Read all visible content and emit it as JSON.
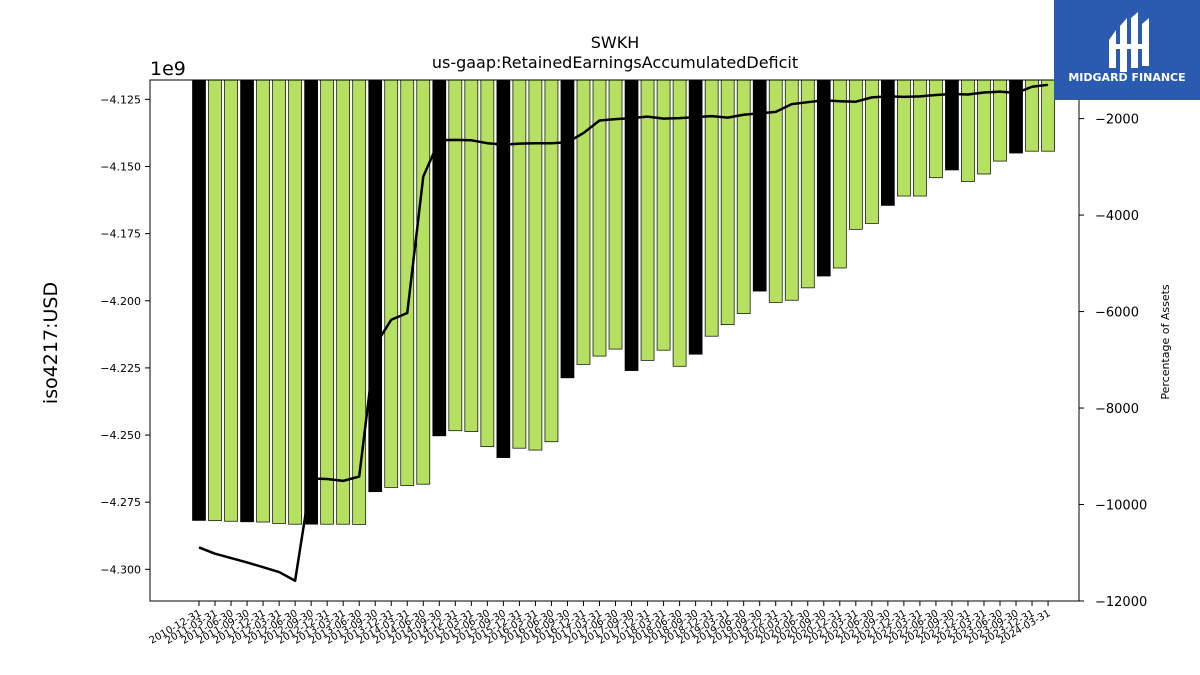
{
  "chart_data": {
    "type": "bar",
    "title": "SWKH",
    "subtitle": "us-gaap:RetainedEarningsAccumulatedDeficit",
    "ylabel": "iso4217:USD",
    "y_multiplier_label": "1e9",
    "y2label": "Percentage of Assets",
    "ylim": [
      -4.3118,
      -4.1178
    ],
    "y2lim": [
      -12000,
      -1200
    ],
    "yticks": [
      "−4.125",
      "−4.150",
      "−4.175",
      "−4.200",
      "−4.225",
      "−4.250",
      "−4.275",
      "−4.300"
    ],
    "y2ticks": [
      "−2000",
      "−4000",
      "−6000",
      "−8000",
      "−10000",
      "−12000"
    ],
    "categories": [
      "2010-12-31",
      "2011-03-31",
      "2011-06-30",
      "2011-09-30",
      "2011-12-31",
      "2012-03-31",
      "2012-06-30",
      "2012-09-30",
      "2012-12-31",
      "2013-03-31",
      "2013-06-30",
      "2013-09-30",
      "2013-12-31",
      "2014-03-31",
      "2014-06-30",
      "2014-09-30",
      "2014-12-31",
      "2015-03-31",
      "2015-06-30",
      "2015-09-30",
      "2015-12-31",
      "2016-03-31",
      "2016-06-30",
      "2016-09-30",
      "2016-12-31",
      "2017-03-31",
      "2017-06-30",
      "2017-09-30",
      "2017-12-31",
      "2018-03-31",
      "2018-06-30",
      "2018-09-30",
      "2018-12-31",
      "2019-03-31",
      "2019-06-30",
      "2019-09-30",
      "2019-12-31",
      "2020-03-31",
      "2020-06-30",
      "2020-09-30",
      "2020-12-31",
      "2021-03-31",
      "2021-06-30",
      "2021-09-30",
      "2021-12-31",
      "2022-03-31",
      "2022-06-30",
      "2022-09-30",
      "2022-12-31",
      "2023-03-31",
      "2023-06-30",
      "2023-09-30",
      "2023-12-31",
      "2024-03-31"
    ],
    "xtick_labels": [
      "2010-12-31",
      "2011-03-31",
      "2011-06-30",
      "2011-09-30",
      "2011-12-31",
      "2012-03-31",
      "2012-06-30",
      "2012-09-30",
      "2012-12-31",
      "2013-03-31",
      "2013-06-30",
      "2013-09-30",
      "2013-12-31",
      "2014-03-31",
      "2014-06-30",
      "2014-09-30",
      "2014-12-31",
      "2015-03-31",
      "2015-06-30",
      "2015-09-30",
      "2015-12-31",
      "2016-03-31",
      "2016-06-30",
      "2016-09-30",
      "2016-12-31",
      "2017-03-31",
      "2017-06-30",
      "2017-09-30",
      "2017-12-31",
      "2018-03-31",
      "2018-06-30",
      "2018-09-30",
      "2018-12-31",
      "2019-03-31",
      "2019-06-30",
      "2019-09-30",
      "2019-12-31",
      "2020-03-31",
      "2020-06-30",
      "2020-09-30",
      "2020-12-31",
      "2021-03-31",
      "2021-06-30",
      "2021-09-30",
      "2021-12-31",
      "2022-03-31",
      "2022-06-30",
      "2022-09-30",
      "2022-12-31",
      "2023-03-31",
      "2023-06-30",
      "2023-09-30",
      "2023-12-31",
      "2024-03-31"
    ],
    "series": [
      {
        "kind": "bar",
        "values": [
          -4.2818,
          -4.2819,
          -4.2821,
          -4.2823,
          -4.2824,
          -4.2829,
          -4.2832,
          -4.2832,
          -4.2832,
          -4.2832,
          -4.2833,
          -4.2711,
          -4.2695,
          -4.2688,
          -4.2683,
          -4.2503,
          -4.2484,
          -4.2487,
          -4.2543,
          -4.2584,
          -4.2549,
          -4.2556,
          -4.2525,
          -4.2287,
          -4.2237,
          -4.2206,
          -4.218,
          -4.226,
          -4.2222,
          -4.2184,
          -4.2244,
          -4.2199,
          -4.2132,
          -4.2089,
          -4.2048,
          -4.1964,
          -4.2006,
          -4.1998,
          -4.1952,
          -4.1908,
          -4.1878,
          -4.1734,
          -4.1712,
          -4.1645,
          -4.161,
          -4.161,
          -4.1542,
          -4.1513,
          -4.1556,
          -4.1528,
          -4.148,
          -4.145,
          -4.1443,
          -4.1443
        ],
        "colors_by_index_year_end": "#000000",
        "color": "#b5e061"
      },
      {
        "kind": "line",
        "axis": "right",
        "color": "#000000",
        "values": [
          -10890,
          -11020,
          -11110,
          -11200,
          -11300,
          -11400,
          -11580,
          -9460,
          -9470,
          -9510,
          -9420,
          -6700,
          -6170,
          -6030,
          -3200,
          -2450,
          -2440,
          -2450,
          -2510,
          -2540,
          -2520,
          -2510,
          -2510,
          -2490,
          -2300,
          -2040,
          -2010,
          -1990,
          -1960,
          -2000,
          -1990,
          -1970,
          -1950,
          -1980,
          -1920,
          -1890,
          -1860,
          -1700,
          -1660,
          -1620,
          -1640,
          -1650,
          -1560,
          -1540,
          -1550,
          -1540,
          -1510,
          -1490,
          -1500,
          -1460,
          -1440,
          -1470,
          -1340,
          -1300
        ]
      }
    ],
    "bar_colors": [
      "#000000",
      "#b5e061",
      "#b5e061",
      "#000000",
      "#b5e061",
      "#b5e061",
      "#b5e061",
      "#000000",
      "#b5e061",
      "#b5e061",
      "#b5e061",
      "#000000",
      "#b5e061",
      "#b5e061",
      "#b5e061",
      "#000000",
      "#b5e061",
      "#b5e061",
      "#b5e061",
      "#000000",
      "#b5e061",
      "#b5e061",
      "#b5e061",
      "#000000",
      "#b5e061",
      "#b5e061",
      "#b5e061",
      "#000000",
      "#b5e061",
      "#b5e061",
      "#b5e061",
      "#000000",
      "#b5e061",
      "#b5e061",
      "#b5e061",
      "#000000",
      "#b5e061",
      "#b5e061",
      "#b5e061",
      "#000000",
      "#b5e061",
      "#b5e061",
      "#b5e061",
      "#000000",
      "#b5e061",
      "#b5e061",
      "#b5e061",
      "#000000",
      "#b5e061",
      "#b5e061",
      "#b5e061",
      "#000000",
      "#b5e061",
      "#b5e061"
    ],
    "grid": false,
    "legend": "none"
  },
  "logo": {
    "brand": "MIDGARD FINANCE",
    "background": "#2a5bb0"
  }
}
